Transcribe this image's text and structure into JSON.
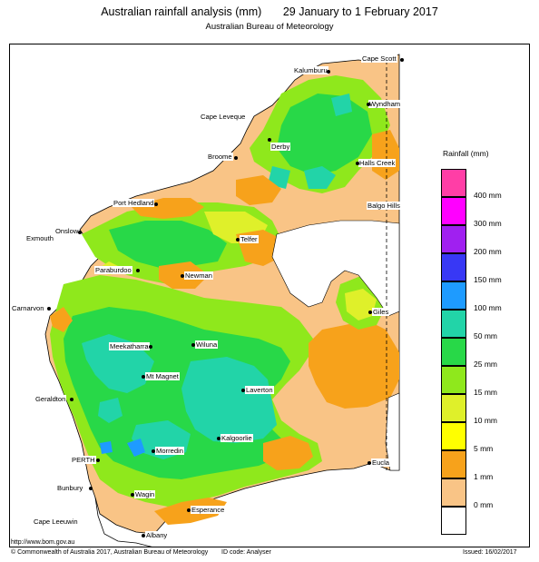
{
  "title": "Australian rainfall analysis (mm)",
  "period": "29 January to 1 February 2017",
  "subtitle": "Australian Bureau of Meteorology",
  "legend": {
    "title": "Rainfall (mm)",
    "items": [
      {
        "label": "400 mm",
        "color": "#ff3ea6"
      },
      {
        "label": "300 mm",
        "color": "#ff00ff"
      },
      {
        "label": "200 mm",
        "color": "#a020f0"
      },
      {
        "label": "150 mm",
        "color": "#3838f5"
      },
      {
        "label": "100 mm",
        "color": "#1e9bff"
      },
      {
        "label": "50 mm",
        "color": "#22d4a8"
      },
      {
        "label": "25 mm",
        "color": "#28d848"
      },
      {
        "label": "15 mm",
        "color": "#8fe81c"
      },
      {
        "label": "10 mm",
        "color": "#dff02a"
      },
      {
        "label": "5 mm",
        "color": "#ffff00"
      },
      {
        "label": "1 mm",
        "color": "#f7a21b"
      },
      {
        "label": "0 mm",
        "color": "#f9c486"
      }
    ],
    "zero_color": "#ffffff"
  },
  "places": [
    {
      "name": "Cape Scott"
    },
    {
      "name": "Kalumburu"
    },
    {
      "name": "Wyndham"
    },
    {
      "name": "Cape Leveque"
    },
    {
      "name": "Derby"
    },
    {
      "name": "Broome"
    },
    {
      "name": "Halls Creek"
    },
    {
      "name": "Balgo Hills"
    },
    {
      "name": "Port Hedland"
    },
    {
      "name": "Onslow"
    },
    {
      "name": "Exmouth"
    },
    {
      "name": "Telfer"
    },
    {
      "name": "Paraburdoo"
    },
    {
      "name": "Newman"
    },
    {
      "name": "Giles"
    },
    {
      "name": "Carnarvon"
    },
    {
      "name": "Meekatharra"
    },
    {
      "name": "Wiluna"
    },
    {
      "name": "Mt Magnet"
    },
    {
      "name": "Laverton"
    },
    {
      "name": "Geraldton"
    },
    {
      "name": "Kalgoorlie"
    },
    {
      "name": "Morredin"
    },
    {
      "name": "PERTH"
    },
    {
      "name": "Eucla"
    },
    {
      "name": "Bunbury"
    },
    {
      "name": "Wagin"
    },
    {
      "name": "Esperance"
    },
    {
      "name": "Cape Leeuwin"
    },
    {
      "name": "Albany"
    }
  ],
  "url": "http://www.bom.gov.au",
  "copyright": "© Commonwealth of Australia 2017, Australian Bureau of Meteorology",
  "id_code": "ID code: Analyser",
  "issued": "Issued: 16/02/2017"
}
